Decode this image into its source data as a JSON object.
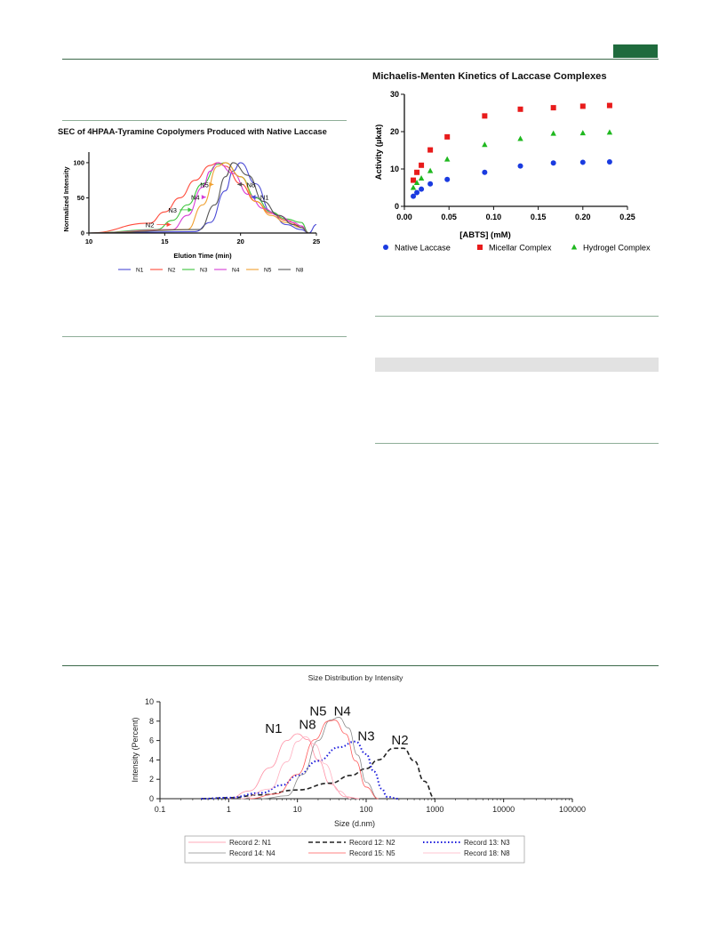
{
  "colors": {
    "rule": "#3c6a4a",
    "tab": "#1f6b3d",
    "sec": {
      "N1": "#4b4bd6",
      "N2": "#ff4a3a",
      "N3": "#3cc43c",
      "N4": "#d63cd6",
      "N5": "#f0a030",
      "N8": "#555555"
    },
    "mm": {
      "native": "#1a3be0",
      "micellar": "#e81b1b",
      "hydrogel": "#1fb81f"
    },
    "dls": {
      "N1": "#ff8fa3",
      "N2": "#222222",
      "N3": "#1a1adc",
      "N4": "#8a8a8a",
      "N5": "#ff5a5a",
      "N8": "#ffb0c0"
    }
  },
  "chart_data": [
    {
      "type": "line",
      "title": "SEC of 4HPAA-Tyramine Copolymers Produced with Native Laccase",
      "xlabel": "Elution Time (min)",
      "ylabel": "Normalized Intensity",
      "xlim": [
        10,
        25
      ],
      "ylim": [
        0,
        110
      ],
      "xticks": [
        "10",
        "15",
        "20",
        "25"
      ],
      "yticks": [
        "0",
        "50",
        "100"
      ],
      "legend_position": "bottom",
      "series": [
        {
          "name": "N1",
          "x": [
            10,
            17,
            18,
            19,
            19.5,
            20,
            21,
            22,
            23,
            24,
            24.5,
            25
          ],
          "values": [
            0,
            2,
            15,
            60,
            88,
            100,
            70,
            30,
            12,
            5,
            0,
            12
          ]
        },
        {
          "name": "N2",
          "x": [
            10,
            14,
            15,
            16,
            17,
            18,
            18.5,
            19,
            20,
            21,
            22,
            23,
            24,
            24.5
          ],
          "values": [
            0,
            14,
            30,
            50,
            75,
            96,
            100,
            95,
            70,
            45,
            28,
            18,
            10,
            0
          ]
        },
        {
          "name": "N3",
          "x": [
            10,
            14.5,
            15.5,
            16.5,
            17.5,
            18.5,
            19,
            20,
            21,
            22,
            23,
            24,
            24.5
          ],
          "values": [
            0,
            5,
            18,
            40,
            70,
            98,
            100,
            80,
            50,
            30,
            20,
            15,
            0
          ]
        },
        {
          "name": "N4",
          "x": [
            10,
            15.5,
            16.5,
            17.5,
            18,
            18.5,
            19.5,
            20.5,
            21.5,
            22.5,
            23.5,
            24,
            24.5
          ],
          "values": [
            0,
            5,
            25,
            65,
            88,
            100,
            85,
            55,
            35,
            25,
            15,
            10,
            0
          ]
        },
        {
          "name": "N5",
          "x": [
            10,
            16.5,
            17.5,
            18.5,
            19,
            20,
            21,
            22,
            23,
            24,
            24.5
          ],
          "values": [
            0,
            5,
            40,
            95,
            100,
            80,
            45,
            25,
            15,
            8,
            0
          ]
        },
        {
          "name": "N8",
          "x": [
            10,
            17.3,
            18.3,
            19,
            19.5,
            20.5,
            21.5,
            22.5,
            23.5,
            24,
            24.5
          ],
          "values": [
            0,
            5,
            40,
            80,
            100,
            82,
            45,
            25,
            12,
            8,
            0
          ]
        }
      ],
      "annotations": [
        {
          "text": "N1",
          "x": 21.3,
          "y": 51
        },
        {
          "text": "N2",
          "x": 14.3,
          "y": 12
        },
        {
          "text": "N3",
          "x": 15.8,
          "y": 33
        },
        {
          "text": "N4",
          "x": 17.3,
          "y": 51
        },
        {
          "text": "N5",
          "x": 17.9,
          "y": 69
        },
        {
          "text": "N8",
          "x": 20.4,
          "y": 69
        }
      ]
    },
    {
      "type": "scatter",
      "title": "Michaelis-Menten Kinetics of Laccase Complexes",
      "xlabel": "[ABTS] (mM)",
      "ylabel": "Activity (µkat)",
      "xlim": [
        0,
        0.25
      ],
      "ylim": [
        0,
        30
      ],
      "xticks": [
        "0.00",
        "0.05",
        "0.10",
        "0.15",
        "0.20",
        "0.25"
      ],
      "yticks": [
        "0",
        "10",
        "20",
        "30"
      ],
      "legend_position": "bottom",
      "series": [
        {
          "name": "Native Laccase",
          "marker": "circle",
          "x": [
            0.01,
            0.014,
            0.019,
            0.029,
            0.048,
            0.09,
            0.13,
            0.167,
            0.2,
            0.23
          ],
          "values": [
            2.7,
            3.7,
            4.6,
            6.0,
            7.2,
            9.1,
            10.8,
            11.6,
            11.8,
            11.9
          ]
        },
        {
          "name": "Micellar Complex",
          "marker": "square",
          "x": [
            0.01,
            0.014,
            0.019,
            0.029,
            0.048,
            0.09,
            0.13,
            0.167,
            0.2,
            0.23
          ],
          "values": [
            7.0,
            9.1,
            11.0,
            15.1,
            18.6,
            24.2,
            26.0,
            26.4,
            26.8,
            27.0
          ]
        },
        {
          "name": "Hydrogel Complex",
          "marker": "triangle",
          "x": [
            0.01,
            0.014,
            0.019,
            0.029,
            0.048,
            0.09,
            0.13,
            0.167,
            0.2,
            0.23
          ],
          "values": [
            5.0,
            6.3,
            7.5,
            9.5,
            12.6,
            16.5,
            18.1,
            19.5,
            19.6,
            19.8
          ]
        }
      ]
    },
    {
      "type": "line",
      "title": "Size Distribution by Intensity",
      "xlabel": "Size (d.nm)",
      "ylabel": "Intensity (Percent)",
      "xscale": "log",
      "xlim": [
        0.1,
        100000
      ],
      "ylim": [
        0,
        10
      ],
      "xticks": [
        "0.1",
        "1",
        "10",
        "100",
        "1000",
        "10000",
        "100000"
      ],
      "yticks": [
        "0",
        "2",
        "4",
        "6",
        "8",
        "10"
      ],
      "legend_position": "bottom",
      "series": [
        {
          "name": "Record 2: N1",
          "x": [
            0.1,
            1,
            2,
            4,
            7,
            10,
            14,
            20,
            30,
            50,
            80,
            100000
          ],
          "values": [
            0,
            0,
            0.8,
            3.2,
            6.0,
            6.7,
            6.1,
            4.0,
            1.5,
            0.2,
            0,
            0
          ]
        },
        {
          "name": "Record 12: N2",
          "x": [
            0.1,
            0.4,
            1,
            3,
            10,
            30,
            60,
            100,
            150,
            250,
            350,
            500,
            700,
            1000,
            100000
          ],
          "values": [
            0,
            0,
            0.1,
            0.4,
            0.9,
            1.6,
            2.4,
            3.1,
            4.0,
            5.2,
            5.2,
            3.9,
            1.8,
            0,
            0
          ]
        },
        {
          "name": "Record 13: N3",
          "x": [
            0.1,
            0.4,
            1,
            3,
            6,
            10,
            20,
            40,
            70,
            100,
            130,
            170,
            200,
            300,
            100000
          ],
          "values": [
            0,
            0,
            0.1,
            0.6,
            1.4,
            2.4,
            3.9,
            5.3,
            5.9,
            4.6,
            2.8,
            1.0,
            0.2,
            0,
            0
          ]
        },
        {
          "name": "Record 14: N4",
          "x": [
            0.1,
            3,
            7,
            12,
            20,
            30,
            40,
            55,
            75,
            100,
            150,
            100000
          ],
          "values": [
            0,
            0,
            0.3,
            2.5,
            6.0,
            8.1,
            8.4,
            7.3,
            4.5,
            1.7,
            0,
            0
          ]
        },
        {
          "name": "Record 15: N5",
          "x": [
            0.1,
            2,
            5,
            10,
            18,
            28,
            35,
            50,
            70,
            100,
            150,
            100000
          ],
          "values": [
            0,
            0,
            0.5,
            2.5,
            6.1,
            8.0,
            8.1,
            6.7,
            3.9,
            1.2,
            0,
            0
          ]
        },
        {
          "name": "Record 18: N8",
          "x": [
            0.1,
            1.5,
            4,
            7,
            10,
            13,
            18,
            25,
            40,
            60,
            100000
          ],
          "values": [
            0,
            0,
            1.0,
            3.8,
            5.9,
            6.4,
            5.6,
            3.6,
            0.8,
            0,
            0
          ]
        }
      ],
      "annotations": [
        {
          "text": "N1",
          "x": 4.5,
          "y": 6.8
        },
        {
          "text": "N8",
          "x": 14,
          "y": 7.2
        },
        {
          "text": "N5",
          "x": 20,
          "y": 8.6
        },
        {
          "text": "N4",
          "x": 45,
          "y": 8.6
        },
        {
          "text": "N3",
          "x": 100,
          "y": 6.0
        },
        {
          "text": "N2",
          "x": 310,
          "y": 5.6
        }
      ]
    }
  ]
}
